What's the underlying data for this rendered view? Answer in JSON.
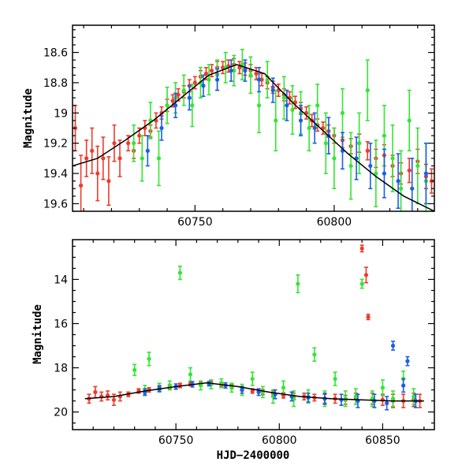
{
  "chart_data": [
    {
      "type": "scatter",
      "panel": "top",
      "title": "",
      "xlabel": "",
      "ylabel": "Magnitude",
      "xlim": [
        60706,
        60836
      ],
      "ylim": [
        19.65,
        18.42
      ],
      "y_inverted": true,
      "x_tick_labels": [
        "60750",
        "60800"
      ],
      "x_ticks": [
        60750,
        60800
      ],
      "y_tick_labels": [
        "18.6",
        "18.8",
        "19",
        "19.2",
        "19.4",
        "19.6"
      ],
      "y_ticks": [
        18.6,
        18.8,
        19.0,
        19.2,
        19.4,
        19.6
      ],
      "colors": {
        "green": "#33e633",
        "blue": "#1a5ee6",
        "red": "#f03a2a",
        "model": "#000000"
      },
      "model_curve": {
        "x": [
          60706,
          60715,
          60725,
          60735,
          60745,
          60755,
          60765,
          60775,
          60785,
          60795,
          60805,
          60815,
          60825,
          60836
        ],
        "y": [
          19.35,
          19.3,
          19.18,
          19.05,
          18.9,
          18.75,
          18.68,
          18.74,
          18.93,
          19.1,
          19.27,
          19.42,
          19.55,
          19.65
        ]
      },
      "series": [
        {
          "color_key": "red",
          "x": [
            60707,
            60709,
            60711,
            60713,
            60715,
            60717,
            60719,
            60721,
            60723,
            60726,
            60728,
            60730,
            60732,
            60734,
            60736,
            60738,
            60740,
            60742,
            60744,
            60746,
            60748,
            60750,
            60752,
            60754,
            60756,
            60758,
            60760,
            60762,
            60764,
            60766,
            60768,
            60770,
            60772,
            60774,
            60776,
            60778,
            60780,
            60782,
            60784,
            60786,
            60788,
            60790,
            60792,
            60794,
            60796,
            60798,
            60800,
            60803,
            60806,
            60809,
            60812,
            60815,
            60818,
            60821,
            60824,
            60827,
            60830,
            60833,
            60835
          ],
          "y": [
            19.1,
            19.48,
            19.3,
            19.25,
            19.4,
            19.3,
            19.45,
            19.2,
            19.3,
            19.2,
            19.25,
            19.15,
            19.1,
            19.12,
            19.05,
            19.0,
            18.95,
            18.92,
            18.88,
            18.86,
            18.82,
            18.8,
            18.76,
            18.74,
            18.72,
            18.7,
            18.7,
            18.69,
            18.68,
            18.7,
            18.71,
            18.72,
            18.74,
            18.78,
            18.8,
            18.83,
            18.85,
            18.88,
            18.9,
            18.93,
            18.97,
            19.0,
            19.05,
            19.08,
            19.1,
            19.12,
            19.15,
            19.18,
            19.22,
            19.2,
            19.25,
            19.3,
            19.28,
            19.35,
            19.4,
            19.38,
            19.32,
            19.42,
            19.45
          ],
          "err": [
            0.15,
            0.2,
            0.12,
            0.15,
            0.18,
            0.14,
            0.16,
            0.12,
            0.12,
            0.05,
            0.05,
            0.05,
            0.05,
            0.04,
            0.05,
            0.04,
            0.04,
            0.04,
            0.04,
            0.04,
            0.04,
            0.04,
            0.04,
            0.04,
            0.04,
            0.04,
            0.04,
            0.04,
            0.04,
            0.04,
            0.04,
            0.04,
            0.04,
            0.04,
            0.04,
            0.04,
            0.04,
            0.04,
            0.04,
            0.04,
            0.04,
            0.04,
            0.04,
            0.04,
            0.04,
            0.04,
            0.05,
            0.05,
            0.05,
            0.06,
            0.06,
            0.06,
            0.07,
            0.07,
            0.07,
            0.08,
            0.08,
            0.08,
            0.08
          ]
        },
        {
          "color_key": "green",
          "x": [
            60728,
            60731,
            60734,
            60737,
            60740,
            60743,
            60746,
            60749,
            60752,
            60755,
            60758,
            60761,
            60764,
            60767,
            60770,
            60773,
            60776,
            60779,
            60782,
            60785,
            60788,
            60791,
            60794,
            60797,
            60800,
            60803,
            60806,
            60809,
            60812,
            60815,
            60818,
            60821,
            60824,
            60827,
            60830,
            60833
          ],
          "y": [
            19.2,
            19.3,
            19.05,
            19.3,
            18.95,
            18.9,
            18.85,
            18.95,
            18.8,
            18.78,
            18.75,
            18.7,
            18.72,
            18.68,
            18.75,
            18.95,
            18.78,
            19.05,
            18.9,
            18.98,
            19.0,
            19.1,
            18.95,
            19.2,
            19.3,
            19.0,
            19.35,
            19.2,
            18.85,
            19.4,
            19.15,
            19.3,
            19.5,
            19.05,
            19.35,
            19.45
          ],
          "err": [
            0.12,
            0.15,
            0.12,
            0.18,
            0.12,
            0.1,
            0.1,
            0.14,
            0.1,
            0.1,
            0.1,
            0.1,
            0.1,
            0.1,
            0.12,
            0.18,
            0.12,
            0.2,
            0.14,
            0.16,
            0.14,
            0.15,
            0.14,
            0.2,
            0.2,
            0.16,
            0.22,
            0.2,
            0.2,
            0.22,
            0.2,
            0.22,
            0.25,
            0.2,
            0.25,
            0.25
          ]
        },
        {
          "color_key": "blue",
          "x": [
            60733,
            60738,
            60743,
            60748,
            60753,
            60758,
            60763,
            60768,
            60773,
            60778,
            60783,
            60788,
            60793,
            60798,
            60803,
            60808,
            60813,
            60818,
            60823,
            60828,
            60833
          ],
          "y": [
            19.25,
            19.1,
            18.95,
            18.9,
            18.82,
            18.78,
            18.72,
            18.72,
            18.78,
            18.85,
            18.95,
            19.05,
            19.1,
            19.15,
            19.25,
            19.3,
            19.35,
            19.4,
            19.45,
            19.5,
            19.4
          ],
          "err": [
            0.1,
            0.08,
            0.08,
            0.08,
            0.07,
            0.07,
            0.07,
            0.07,
            0.08,
            0.08,
            0.1,
            0.1,
            0.1,
            0.12,
            0.12,
            0.14,
            0.15,
            0.16,
            0.18,
            0.2,
            0.2
          ]
        }
      ]
    },
    {
      "type": "scatter",
      "panel": "bottom",
      "title": "",
      "xlabel": "HJD−2400000",
      "ylabel": "Magnitude",
      "xlim": [
        60700,
        60875
      ],
      "ylim": [
        20.8,
        12.2
      ],
      "y_inverted": true,
      "x_tick_labels": [
        "60750",
        "60800",
        "60850"
      ],
      "x_ticks": [
        60750,
        60800,
        60850
      ],
      "y_tick_labels": [
        "14",
        "16",
        "18",
        "20"
      ],
      "y_ticks": [
        14,
        16,
        18,
        20
      ],
      "colors": {
        "green": "#33e633",
        "blue": "#1a5ee6",
        "red": "#f03a2a",
        "model": "#000000"
      },
      "model_curve": {
        "x": [
          60706,
          60720,
          60735,
          60750,
          60765,
          60780,
          60795,
          60810,
          60825,
          60840,
          60855,
          60870
        ],
        "y": [
          19.4,
          19.3,
          19.05,
          18.85,
          18.68,
          18.85,
          19.1,
          19.3,
          19.4,
          19.45,
          19.5,
          19.5
        ]
      },
      "series": [
        {
          "color_key": "red",
          "x": [
            60708,
            60711,
            60714,
            60717,
            60720,
            60723,
            60727,
            60732,
            60737,
            60742,
            60747,
            60752,
            60757,
            60762,
            60767,
            60772,
            60777,
            60782,
            60787,
            60792,
            60797,
            60802,
            60807,
            60812,
            60817,
            60822,
            60827,
            60832,
            60837,
            60840,
            60842,
            60843,
            60845,
            60850,
            60855,
            60860,
            60865,
            60868
          ],
          "y": [
            19.4,
            19.1,
            19.3,
            19.25,
            19.45,
            19.3,
            19.2,
            19.05,
            19.0,
            18.9,
            18.85,
            18.8,
            18.72,
            18.7,
            18.68,
            18.75,
            18.85,
            18.95,
            19.05,
            19.1,
            19.15,
            19.25,
            19.3,
            19.3,
            19.35,
            19.4,
            19.4,
            19.45,
            19.4,
            12.6,
            13.8,
            15.7,
            19.4,
            19.45,
            19.5,
            19.5,
            19.45,
            19.5
          ],
          "err": [
            0.2,
            0.25,
            0.2,
            0.2,
            0.25,
            0.2,
            0.1,
            0.1,
            0.1,
            0.1,
            0.1,
            0.1,
            0.1,
            0.1,
            0.1,
            0.1,
            0.1,
            0.1,
            0.1,
            0.12,
            0.12,
            0.12,
            0.15,
            0.15,
            0.15,
            0.2,
            0.2,
            0.2,
            0.25,
            0.15,
            0.35,
            0.12,
            0.25,
            0.25,
            0.3,
            0.3,
            0.3,
            0.3
          ]
        },
        {
          "color_key": "green",
          "x": [
            60730,
            60735,
            60737,
            60742,
            60747,
            60752,
            60757,
            60762,
            60767,
            60772,
            60777,
            60782,
            60787,
            60792,
            60797,
            60802,
            60807,
            60809,
            60814,
            60817,
            60822,
            60827,
            60832,
            60837,
            60840,
            60845,
            60850,
            60855,
            60860,
            60865
          ],
          "y": [
            18.1,
            19.0,
            17.6,
            18.9,
            18.8,
            13.7,
            18.3,
            18.8,
            18.75,
            18.7,
            18.9,
            19.0,
            18.5,
            19.1,
            19.3,
            18.9,
            19.4,
            14.2,
            19.3,
            17.4,
            19.4,
            18.5,
            19.4,
            19.3,
            14.2,
            19.4,
            18.9,
            19.4,
            18.5,
            19.3
          ],
          "err": [
            0.25,
            0.2,
            0.3,
            0.2,
            0.2,
            0.3,
            0.3,
            0.2,
            0.2,
            0.2,
            0.2,
            0.25,
            0.3,
            0.25,
            0.3,
            0.3,
            0.35,
            0.4,
            0.3,
            0.3,
            0.35,
            0.3,
            0.35,
            0.35,
            0.2,
            0.35,
            0.35,
            0.35,
            0.35,
            0.35
          ]
        },
        {
          "color_key": "blue",
          "x": [
            60735,
            60742,
            60750,
            60758,
            60766,
            60774,
            60782,
            60790,
            60798,
            60806,
            60814,
            60822,
            60830,
            60838,
            60846,
            60852,
            60855,
            60860,
            60862,
            60866
          ],
          "y": [
            19.1,
            18.95,
            18.85,
            18.75,
            18.72,
            18.8,
            19.0,
            19.1,
            19.2,
            19.3,
            19.35,
            19.4,
            19.45,
            19.5,
            19.5,
            19.6,
            17.0,
            18.8,
            17.7,
            19.5
          ],
          "err": [
            0.15,
            0.12,
            0.12,
            0.12,
            0.1,
            0.12,
            0.15,
            0.15,
            0.2,
            0.2,
            0.2,
            0.25,
            0.25,
            0.3,
            0.3,
            0.3,
            0.2,
            0.3,
            0.2,
            0.3
          ]
        }
      ]
    }
  ]
}
